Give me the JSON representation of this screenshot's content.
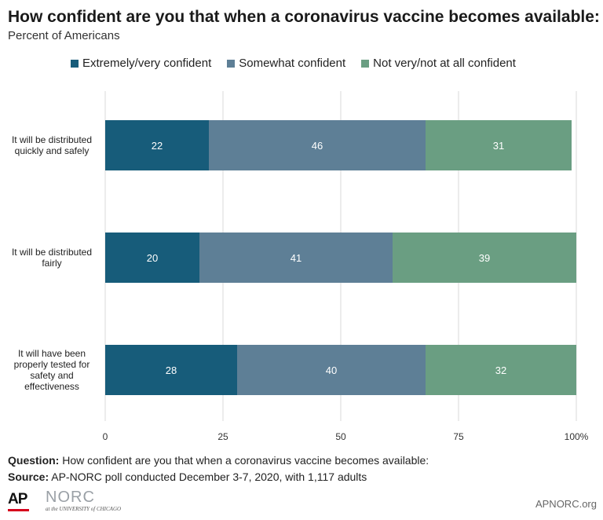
{
  "title": "How confident are you that when a coronavirus vaccine becomes available:",
  "subtitle": "Percent of Americans",
  "legend": [
    {
      "label": "Extremely/very confident",
      "color": "#175c7a"
    },
    {
      "label": "Somewhat confident",
      "color": "#5e7f96"
    },
    {
      "label": "Not very/not at all confident",
      "color": "#6a9e82"
    }
  ],
  "chart_data": {
    "type": "bar",
    "orientation": "horizontal",
    "stacked": true,
    "categories": [
      [
        "It will be distributed",
        "quickly and safely"
      ],
      [
        "It will be distributed",
        "fairly"
      ],
      [
        "It will have been",
        "properly tested for",
        "safety and",
        "effectiveness"
      ]
    ],
    "series": [
      {
        "name": "Extremely/very confident",
        "values": [
          22,
          20,
          28
        ],
        "color": "#175c7a"
      },
      {
        "name": "Somewhat confident",
        "values": [
          46,
          41,
          40
        ],
        "color": "#5e7f96"
      },
      {
        "name": "Not very/not at all confident",
        "values": [
          31,
          39,
          32
        ],
        "color": "#6a9e82"
      }
    ],
    "xlim": [
      0,
      100
    ],
    "xticks": [
      0,
      25,
      50,
      75,
      100
    ],
    "xtick_labels": [
      "0",
      "25",
      "50",
      "75",
      "100%"
    ],
    "grid": true,
    "legend_position": "top"
  },
  "footer": {
    "question_label": "Question:",
    "question_text": " How confident are you that when a coronavirus vaccine becomes available:",
    "source_label": "Source:",
    "source_text": " AP-NORC poll conducted December 3-7, 2020, with 1,117 adults",
    "logo_ap": "AP",
    "logo_norc": "NORC",
    "logo_norc_sub": "at the UNIVERSITY of CHICAGO",
    "brand": "APNORC.org"
  }
}
